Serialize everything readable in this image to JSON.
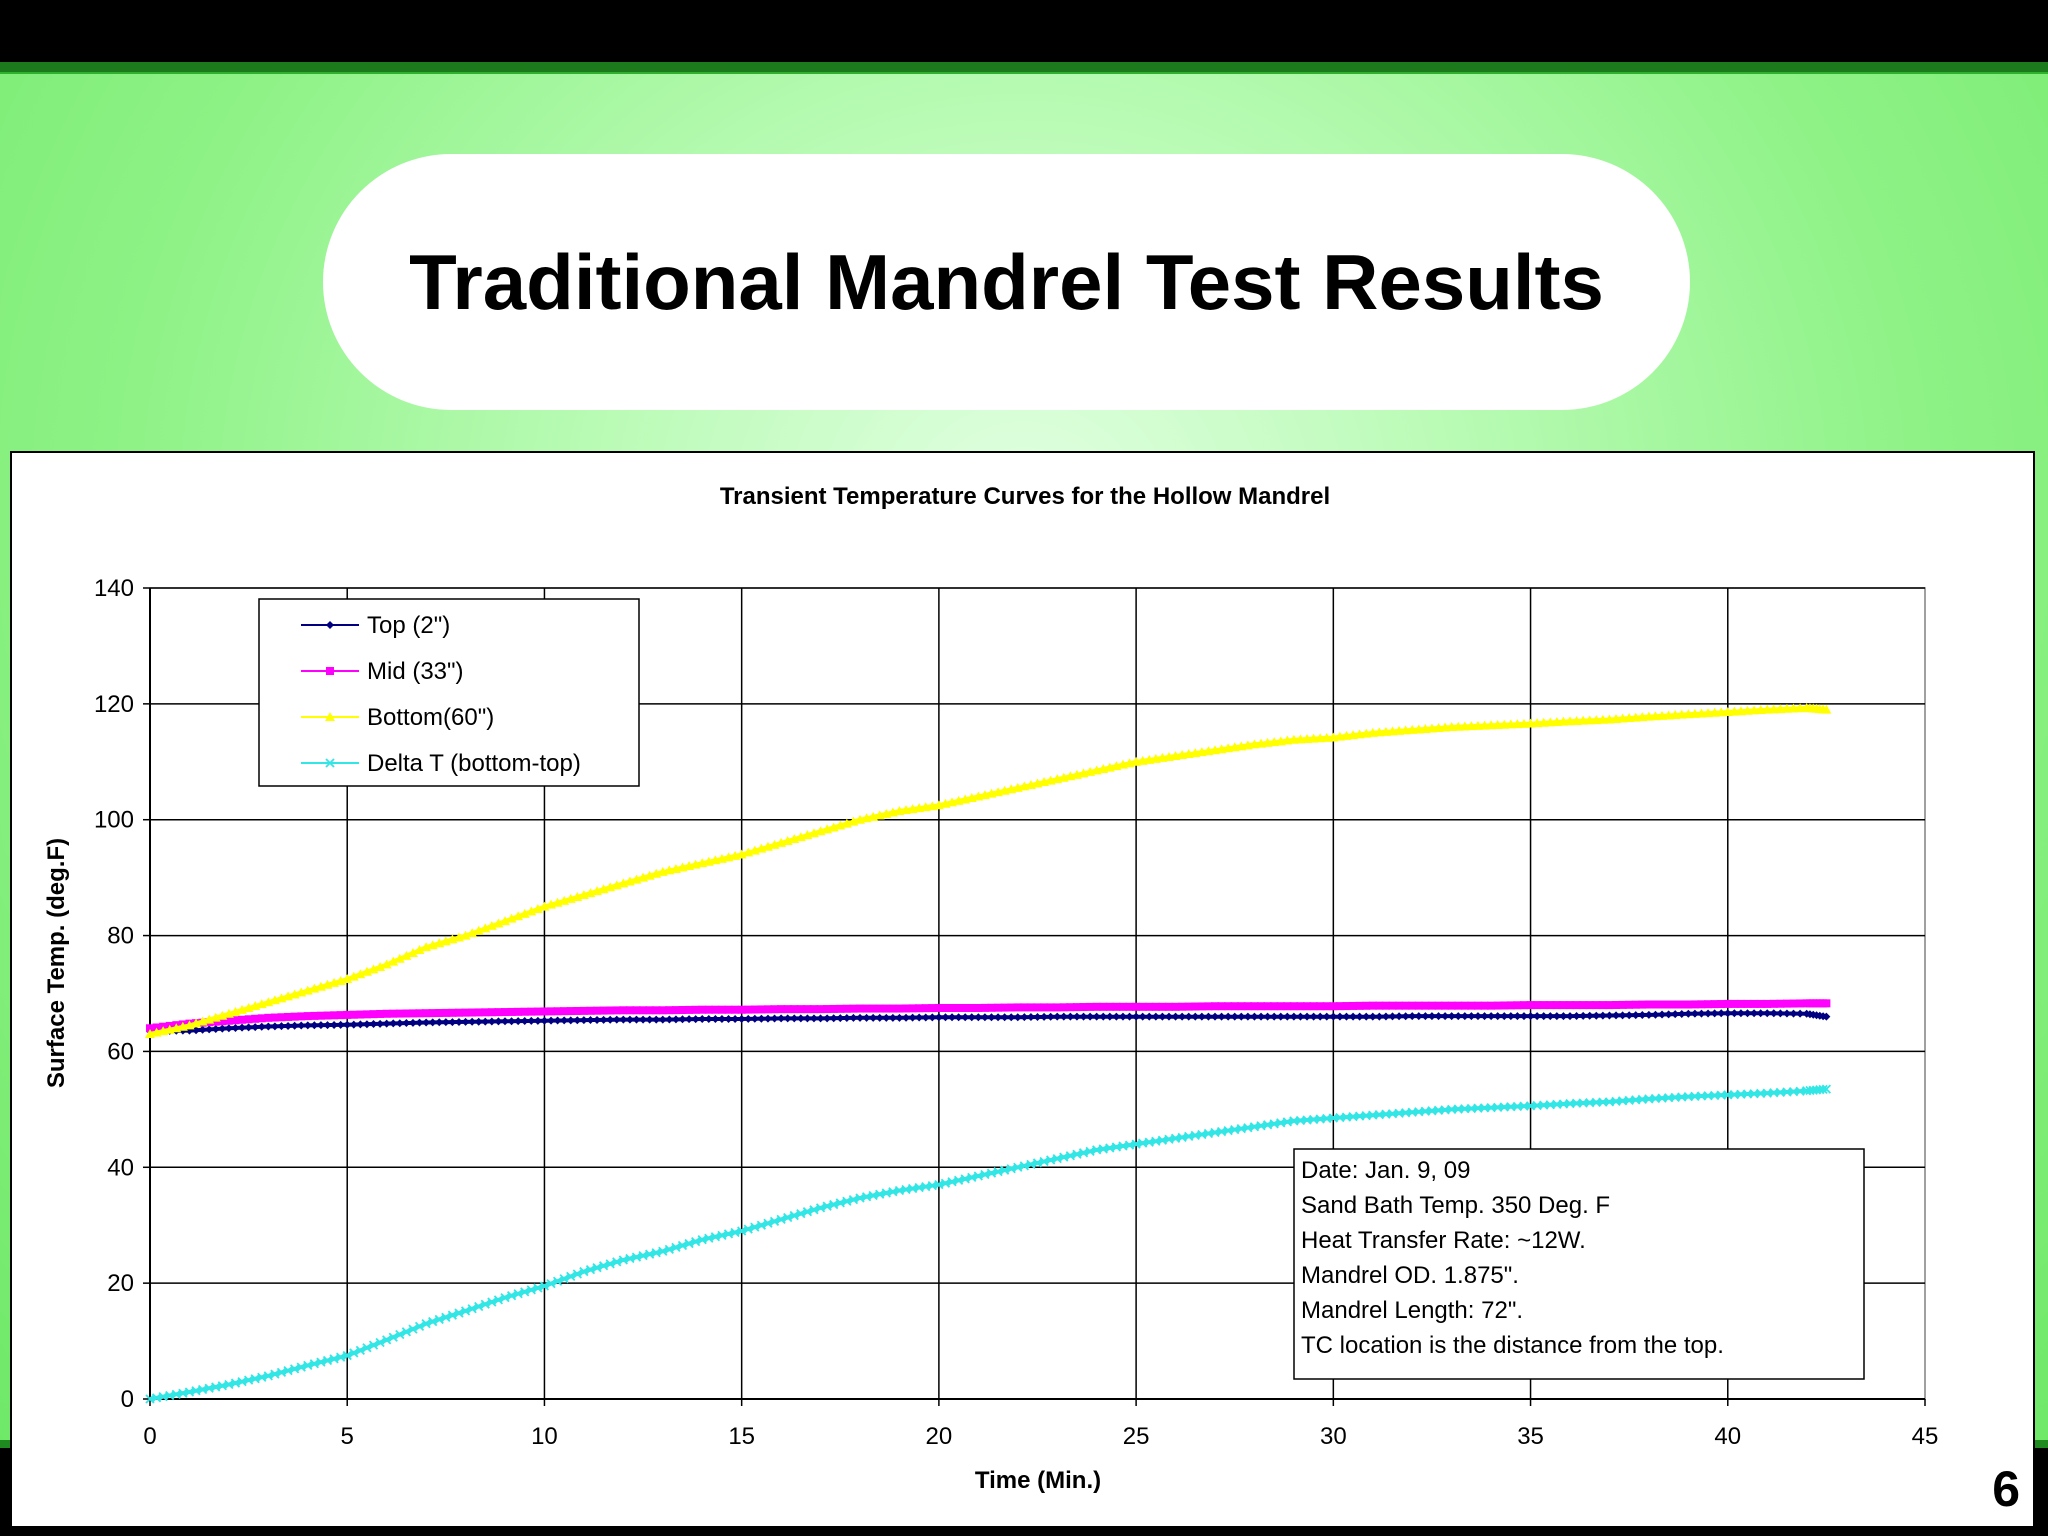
{
  "slide": {
    "title": "Traditional Mandrel Test Results",
    "page_number": "6",
    "colors": {
      "background": "#8ef286",
      "header_bar": "#000000",
      "title_pill": "#ffffff"
    }
  },
  "chart_data": {
    "type": "line",
    "title": "Transient Temperature Curves for the Hollow Mandrel",
    "xlabel": "Time (Min.)",
    "ylabel": "Surface Temp. (deg.F)",
    "xlim": [
      0,
      45
    ],
    "ylim": [
      0,
      140
    ],
    "xticks": [
      "0",
      "5",
      "10",
      "15",
      "20",
      "25",
      "30",
      "35",
      "40",
      "45"
    ],
    "yticks": [
      "0",
      "20",
      "40",
      "60",
      "80",
      "100",
      "120",
      "140"
    ],
    "grid": true,
    "legend_position": "top-left",
    "annotation": [
      "Date: Jan. 9, 09",
      "Sand Bath Temp. 350 Deg. F",
      "Heat Transfer Rate: ~12W.",
      "Mandrel OD. 1.875\".",
      "Mandrel Length: 72\".",
      "TC location is the distance from the top."
    ],
    "series": [
      {
        "name": "Top (2\")",
        "color": "#000080",
        "marker": "diamond",
        "x": [
          0,
          1,
          2,
          3,
          4,
          5,
          6,
          7,
          8,
          9,
          10,
          11,
          12,
          13,
          14,
          15,
          16,
          17,
          18,
          19,
          20,
          21,
          22,
          23,
          24,
          25,
          26,
          27,
          28,
          29,
          30,
          31,
          32,
          33,
          34,
          35,
          36,
          37,
          38,
          39,
          40,
          41,
          42,
          42.5
        ],
        "y": [
          63.5,
          63.6,
          64.0,
          64.3,
          64.5,
          64.6,
          64.8,
          65.0,
          65.1,
          65.2,
          65.3,
          65.4,
          65.5,
          65.5,
          65.6,
          65.6,
          65.7,
          65.7,
          65.8,
          65.8,
          65.9,
          65.9,
          65.9,
          66.0,
          66.0,
          66.0,
          66.0,
          66.0,
          66.0,
          66.0,
          66.0,
          66.0,
          66.1,
          66.1,
          66.1,
          66.1,
          66.1,
          66.2,
          66.3,
          66.5,
          66.6,
          66.6,
          66.5,
          66.0
        ]
      },
      {
        "name": "Mid (33\")",
        "color": "#ff00ff",
        "marker": "square",
        "x": [
          0,
          1,
          2,
          3,
          4,
          5,
          6,
          7,
          8,
          9,
          10,
          11,
          12,
          13,
          14,
          15,
          16,
          17,
          18,
          19,
          20,
          21,
          22,
          23,
          24,
          25,
          26,
          27,
          28,
          29,
          30,
          31,
          32,
          33,
          34,
          35,
          36,
          37,
          38,
          39,
          40,
          41,
          42,
          42.5
        ],
        "y": [
          64.0,
          64.8,
          65.3,
          65.8,
          66.1,
          66.3,
          66.5,
          66.6,
          66.7,
          66.8,
          66.9,
          67.0,
          67.1,
          67.1,
          67.2,
          67.2,
          67.3,
          67.3,
          67.4,
          67.4,
          67.5,
          67.5,
          67.6,
          67.6,
          67.7,
          67.7,
          67.7,
          67.8,
          67.8,
          67.8,
          67.8,
          67.9,
          67.9,
          67.9,
          67.9,
          68.0,
          68.0,
          68.0,
          68.1,
          68.1,
          68.2,
          68.2,
          68.3,
          68.3
        ]
      },
      {
        "name": "Bottom(60\")",
        "color": "#ffff00",
        "marker": "triangle",
        "x": [
          0,
          1,
          2,
          3,
          4,
          5,
          6,
          7,
          8,
          9,
          10,
          11,
          12,
          13,
          14,
          15,
          16,
          17,
          18,
          19,
          20,
          21,
          22,
          23,
          24,
          25,
          26,
          27,
          28,
          29,
          30,
          31,
          32,
          33,
          34,
          35,
          36,
          37,
          38,
          39,
          40,
          41,
          42,
          42.5
        ],
        "y": [
          63.0,
          64.5,
          66.5,
          68.5,
          70.5,
          72.5,
          75.0,
          78.0,
          80.0,
          82.5,
          85.0,
          87.0,
          89.0,
          91.0,
          92.5,
          94.0,
          96.0,
          98.0,
          100.0,
          101.5,
          102.5,
          104.0,
          105.5,
          107.0,
          108.5,
          110.0,
          111.0,
          112.0,
          113.0,
          113.8,
          114.2,
          115.0,
          115.5,
          116.0,
          116.3,
          116.6,
          117.0,
          117.3,
          117.8,
          118.2,
          118.6,
          119.0,
          119.3,
          119.0
        ]
      },
      {
        "name": "Delta T (bottom-top)",
        "color": "#33e6e6",
        "marker": "x",
        "x": [
          0,
          1,
          2,
          3,
          4,
          5,
          6,
          7,
          8,
          9,
          10,
          11,
          12,
          13,
          14,
          15,
          16,
          17,
          18,
          19,
          20,
          21,
          22,
          23,
          24,
          25,
          26,
          27,
          28,
          29,
          30,
          31,
          32,
          33,
          34,
          35,
          36,
          37,
          38,
          39,
          40,
          41,
          42,
          42.5
        ],
        "y": [
          0.0,
          1.2,
          2.5,
          4.0,
          5.8,
          7.5,
          10.2,
          13.0,
          15.2,
          17.5,
          19.5,
          22.0,
          24.0,
          25.5,
          27.5,
          29.0,
          31.0,
          33.0,
          34.7,
          36.0,
          37.0,
          38.5,
          40.0,
          41.5,
          43.0,
          44.0,
          45.0,
          46.0,
          47.0,
          48.0,
          48.5,
          49.0,
          49.5,
          50.0,
          50.3,
          50.6,
          51.0,
          51.3,
          51.8,
          52.2,
          52.5,
          52.8,
          53.2,
          53.5
        ]
      }
    ]
  }
}
